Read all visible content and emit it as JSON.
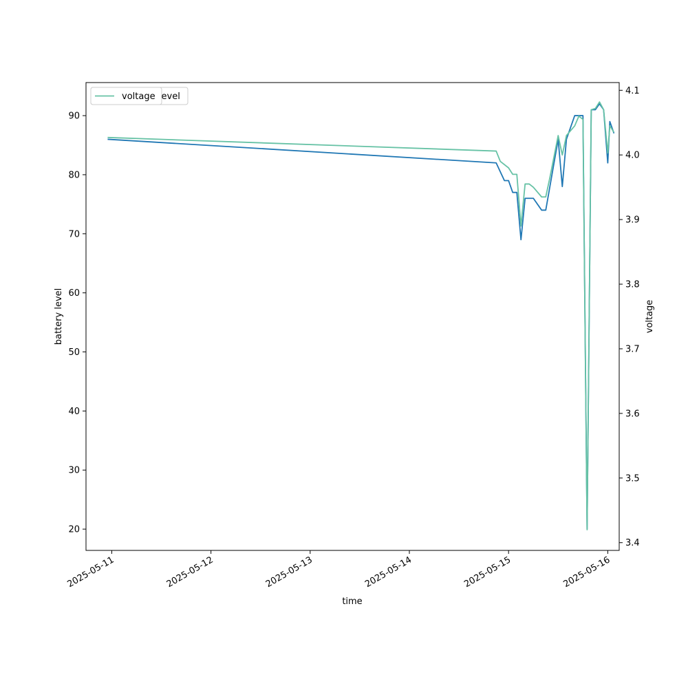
{
  "chart_data": {
    "type": "line",
    "xlabel": "time",
    "ylabel_left": "battery level",
    "ylabel_right": "voltage",
    "x_ticks": [
      "2025-05-11",
      "2025-05-12",
      "2025-05-13",
      "2025-05-14",
      "2025-05-15",
      "2025-05-16"
    ],
    "left_axis": {
      "ylim": [
        16.4,
        95.6
      ],
      "ticks": [
        20,
        30,
        40,
        50,
        60,
        70,
        80,
        90
      ]
    },
    "right_axis": {
      "ylim": [
        3.388,
        4.112
      ],
      "ticks": [
        "3.4",
        "3.5",
        "3.6",
        "3.7",
        "3.8",
        "3.9",
        "4.0",
        "4.1"
      ]
    },
    "xlim": [
      "2025-05-10 17:46",
      "2025-05-16 02:46"
    ],
    "legend": {
      "placement": "upper-left",
      "entries": [
        "battery_level",
        "voltage"
      ]
    },
    "series": [
      {
        "name": "battery_level",
        "axis": "left",
        "color": "#1f77b4",
        "points": [
          [
            "2025-05-10 23:00",
            86
          ],
          [
            "2025-05-14 21:00",
            82
          ],
          [
            "2025-05-14 23:00",
            79
          ],
          [
            "2025-05-15 00:00",
            79
          ],
          [
            "2025-05-15 01:00",
            77
          ],
          [
            "2025-05-15 02:00",
            77
          ],
          [
            "2025-05-15 03:00",
            69
          ],
          [
            "2025-05-15 04:00",
            76
          ],
          [
            "2025-05-15 06:00",
            76
          ],
          [
            "2025-05-15 08:00",
            74
          ],
          [
            "2025-05-15 09:00",
            74
          ],
          [
            "2025-05-15 10:00",
            78
          ],
          [
            "2025-05-15 12:00",
            86
          ],
          [
            "2025-05-15 13:00",
            78
          ],
          [
            "2025-05-15 14:00",
            86
          ],
          [
            "2025-05-15 16:00",
            90
          ],
          [
            "2025-05-15 18:00",
            90
          ],
          [
            "2025-05-15 19:00",
            20
          ],
          [
            "2025-05-15 20:00",
            91
          ],
          [
            "2025-05-15 21:00",
            91
          ],
          [
            "2025-05-15 22:00",
            92
          ],
          [
            "2025-05-15 23:00",
            91
          ],
          [
            "2025-05-16 00:00",
            82
          ],
          [
            "2025-05-16 00:30",
            89
          ],
          [
            "2025-05-16 01:30",
            87
          ]
        ]
      },
      {
        "name": "voltage",
        "axis": "right",
        "color": "#66c2a5",
        "points": [
          [
            "2025-05-10 23:00",
            4.027
          ],
          [
            "2025-05-14 21:00",
            4.006
          ],
          [
            "2025-05-14 22:00",
            3.99
          ],
          [
            "2025-05-15 00:00",
            3.98
          ],
          [
            "2025-05-15 01:00",
            3.97
          ],
          [
            "2025-05-15 02:00",
            3.97
          ],
          [
            "2025-05-15 03:00",
            3.89
          ],
          [
            "2025-05-15 04:00",
            3.955
          ],
          [
            "2025-05-15 05:00",
            3.955
          ],
          [
            "2025-05-15 06:00",
            3.95
          ],
          [
            "2025-05-15 08:00",
            3.935
          ],
          [
            "2025-05-15 09:00",
            3.935
          ],
          [
            "2025-05-15 10:00",
            3.965
          ],
          [
            "2025-05-15 12:00",
            4.03
          ],
          [
            "2025-05-15 13:00",
            4.0
          ],
          [
            "2025-05-15 14:00",
            4.03
          ],
          [
            "2025-05-15 16:00",
            4.045
          ],
          [
            "2025-05-15 17:00",
            4.06
          ],
          [
            "2025-05-15 18:00",
            4.055
          ],
          [
            "2025-05-15 19:00",
            3.42
          ],
          [
            "2025-05-15 20:00",
            4.07
          ],
          [
            "2025-05-15 21:00",
            4.072
          ],
          [
            "2025-05-15 22:00",
            4.082
          ],
          [
            "2025-05-15 23:00",
            4.07
          ],
          [
            "2025-05-16 00:00",
            4.003
          ],
          [
            "2025-05-16 00:30",
            4.045
          ],
          [
            "2025-05-16 01:30",
            4.035
          ]
        ]
      }
    ]
  }
}
